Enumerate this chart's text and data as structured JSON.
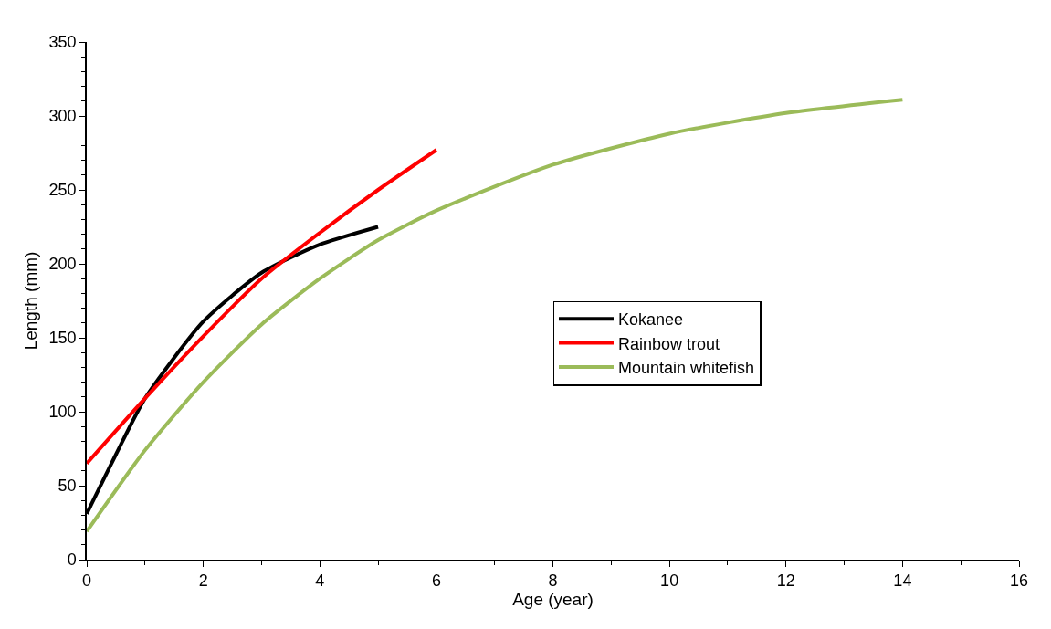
{
  "chart_data": {
    "type": "line",
    "xlabel": "Age (year)",
    "ylabel": "Length (mm)",
    "xlim": [
      0,
      16
    ],
    "xticks": [
      0,
      2,
      4,
      6,
      8,
      10,
      12,
      14,
      16
    ],
    "ylim": [
      0,
      350
    ],
    "yticks": [
      0,
      50,
      100,
      150,
      200,
      250,
      300,
      350
    ],
    "grid": false,
    "legend": "right",
    "marker": "none",
    "line_style": "solid",
    "series": [
      {
        "name": "Kokanee",
        "color": "#000000",
        "x": [
          0,
          0.5,
          1,
          2,
          3,
          4,
          5
        ],
        "values": [
          31,
          71,
          109,
          161,
          194,
          213,
          225
        ]
      },
      {
        "name": "Rainbow trout",
        "color": "#ff0000",
        "x": [
          0,
          1,
          2,
          3,
          4,
          5,
          6
        ],
        "values": [
          65,
          109,
          151,
          190,
          221,
          250,
          277
        ]
      },
      {
        "name": "Mountain whitefish",
        "color": "#9bbb59",
        "x": [
          0,
          1,
          2,
          3,
          4,
          5,
          6,
          8,
          10,
          12,
          14
        ],
        "values": [
          19,
          74,
          120,
          159,
          190,
          216,
          236,
          267,
          288,
          302,
          311
        ]
      }
    ]
  }
}
